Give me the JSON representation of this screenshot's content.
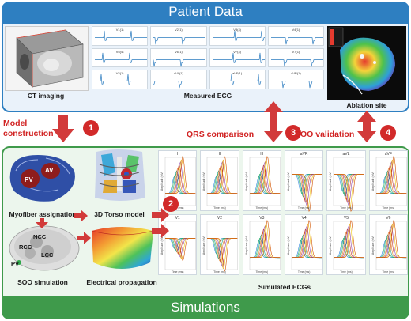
{
  "header": {
    "title": "Patient Data"
  },
  "footer": {
    "title": "Simulations"
  },
  "patient": {
    "ct_label": "CT imaging",
    "ecg_label": "Measured ECG",
    "ablation_label": "Ablation site",
    "ecg_leads": [
      "V1(1)",
      "V2(1)",
      "V3(4)",
      "V4(1)",
      "V5(4)",
      "V6(1)",
      "V7(4)",
      "V7(1)",
      "V2(1)",
      "aVL(1)",
      "aVF(1)",
      "aVR(1)"
    ]
  },
  "steps": [
    {
      "num": "1",
      "label": "Model construction"
    },
    {
      "num": "2",
      "label": ""
    },
    {
      "num": "3",
      "label": "QRS comparison"
    },
    {
      "num": "4",
      "label": "SOO validation"
    }
  ],
  "simulations": {
    "myofiber_label": "Myofiber assignation",
    "torso_label": "3D Torso model",
    "soo_label": "SOO simulation",
    "propagation_label": "Electrical propagation",
    "simulated_label": "Simulated ECGs",
    "heart_tags": [
      "AV",
      "PV"
    ],
    "valve_tags": [
      "NCC",
      "RCC",
      "LCC",
      "PV"
    ],
    "leads_row1": [
      "I",
      "II",
      "III",
      "aVR",
      "aVL",
      "aVF"
    ],
    "leads_row2": [
      "V1",
      "V2",
      "V3",
      "V4",
      "V5",
      "V6"
    ],
    "axis_x": "Time (ms)",
    "axis_y": "Amplitude (mV)"
  },
  "colors": {
    "header_blue": "#2e7fc1",
    "footer_green": "#3f9a4b",
    "arrow_red": "#d23a3a",
    "accent_red": "#d12323"
  }
}
